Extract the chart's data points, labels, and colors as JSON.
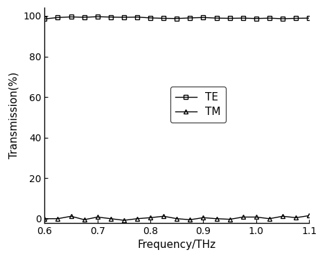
{
  "title": "",
  "xlabel": "Frequency/THz",
  "ylabel": "Transmission(%)",
  "xlim": [
    0.6,
    1.1
  ],
  "ylim": [
    -2,
    104
  ],
  "yticks": [
    0,
    20,
    40,
    60,
    80,
    100
  ],
  "xticks": [
    0.6,
    0.7,
    0.8,
    0.9,
    1.0,
    1.1
  ],
  "TE_x": [
    0.6,
    0.625,
    0.65,
    0.675,
    0.7,
    0.725,
    0.75,
    0.775,
    0.8,
    0.825,
    0.85,
    0.875,
    0.9,
    0.925,
    0.95,
    0.975,
    1.0,
    1.025,
    1.05,
    1.075,
    1.1
  ],
  "TE_y": [
    98.5,
    99.2,
    99.5,
    99.3,
    99.6,
    99.4,
    99.3,
    99.4,
    99.0,
    98.8,
    98.7,
    99.0,
    99.2,
    98.9,
    98.8,
    98.9,
    98.7,
    98.9,
    98.6,
    98.8,
    98.9
  ],
  "TM_x": [
    0.6,
    0.625,
    0.65,
    0.675,
    0.7,
    0.725,
    0.75,
    0.775,
    0.8,
    0.825,
    0.85,
    0.875,
    0.9,
    0.925,
    0.95,
    0.975,
    1.0,
    1.025,
    1.05,
    1.075,
    1.1
  ],
  "TM_y": [
    0.0,
    0.0,
    1.2,
    -0.5,
    0.8,
    0.0,
    -0.8,
    0.0,
    0.5,
    1.2,
    0.0,
    -0.5,
    0.5,
    0.0,
    -0.3,
    0.8,
    0.8,
    0.0,
    1.2,
    0.5,
    1.5
  ],
  "line_color": "#000000",
  "marker_TE": "s",
  "marker_TM": "^",
  "marker_size": 5,
  "legend_TE": "TE",
  "legend_TM": "TM",
  "background_color": "#ffffff",
  "font_size": 11,
  "tick_font_size": 10,
  "linewidth": 1.0
}
